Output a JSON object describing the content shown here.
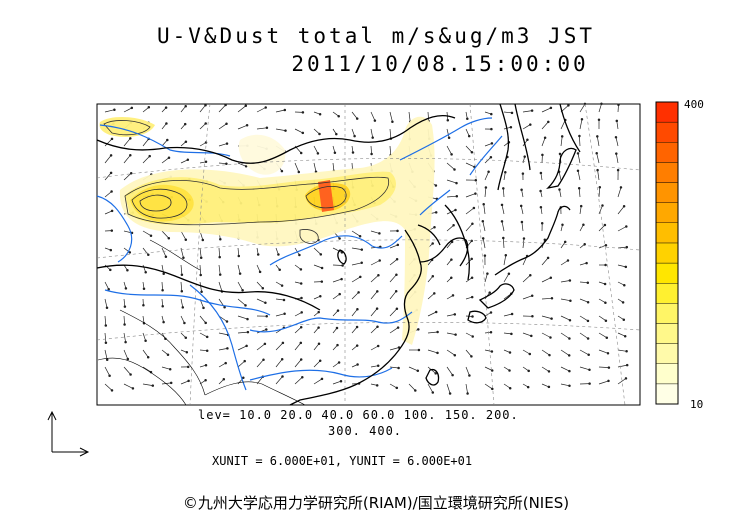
{
  "title": "U-V&Dust total m/s&ug/m3 JST",
  "datetime": "2011/10/08.15:00:00",
  "colorbar": {
    "max_label": "400",
    "min_label": "10",
    "colors": [
      "#ffffe6",
      "#ffffcc",
      "#fffaaa",
      "#fff88a",
      "#fff566",
      "#fff030",
      "#ffe600",
      "#ffd200",
      "#ffbe00",
      "#ffa800",
      "#ff9400",
      "#ff7e00",
      "#ff6400",
      "#ff4a00",
      "#ff3000"
    ]
  },
  "levels_line1": "lev= 10.0 20.0 40.0 60.0 100. 150. 200.",
  "levels_line2": "300. 400.",
  "unit_info": "XUNIT = 6.000E+01, YUNIT = 6.000E+01",
  "credit": "©九州大学応用力学研究所(RIAM)/国立環境研究所(NIES)",
  "colors": {
    "land_line": "#000000",
    "river": "#1e6fe6",
    "grid": "#888888",
    "contour": "#333333"
  }
}
